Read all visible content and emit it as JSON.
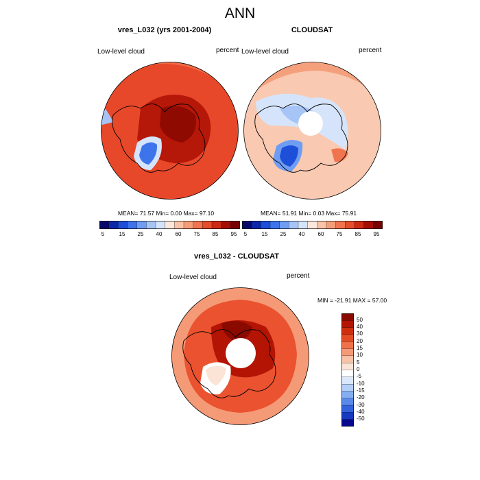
{
  "figure": {
    "title": "ANN"
  },
  "panels": {
    "model": {
      "title": "vres_L032 (yrs 2001-2004)",
      "left_label": "Low-level cloud",
      "right_label": "percent",
      "stats": "MEAN= 71.57 Min= 0.00 Max= 97.10"
    },
    "obs": {
      "title": "CLOUDSAT",
      "left_label": "Low-level cloud",
      "right_label": "percent",
      "stats": "MEAN= 51.91 Min= 0.03 Max= 75.91"
    },
    "diff": {
      "title": "vres_L032 - CLOUDSAT",
      "left_label": "Low-level cloud",
      "right_label": "percent",
      "stats": "MIN = -21.91 MAX = 57.00"
    }
  },
  "colorbars": {
    "abs": {
      "ticks": [
        "5",
        "15",
        "25",
        "40",
        "60",
        "75",
        "85",
        "95"
      ],
      "colors": [
        "#08086a",
        "#0b28a8",
        "#1e4fd8",
        "#3d74ec",
        "#6f9df2",
        "#a6c5f6",
        "#d5e4fa",
        "#fbe7dc",
        "#f9c3a7",
        "#f59d79",
        "#f0744f",
        "#e54d2b",
        "#cc2b12",
        "#a40e04",
        "#7a0000"
      ]
    },
    "diff": {
      "ticks": [
        "50",
        "40",
        "30",
        "20",
        "15",
        "10",
        "5",
        "0",
        "-5",
        "-10",
        "-15",
        "-20",
        "-30",
        "-40",
        "-50"
      ],
      "colors": [
        "#8a0a00",
        "#b31404",
        "#cf2e0f",
        "#e44c25",
        "#f0714a",
        "#f59a77",
        "#f8c2a6",
        "#fbe3d6",
        "#ffffff",
        "#dbe8fb",
        "#b4cff7",
        "#86aff2",
        "#5a8ae9",
        "#3363dc",
        "#1639c0",
        "#08088f"
      ]
    }
  },
  "map_colors": {
    "land_outline": "#000000",
    "model_base": "#e23d1f",
    "obs_base": "#f9c9b1",
    "diff_base": "#ea5230"
  }
}
